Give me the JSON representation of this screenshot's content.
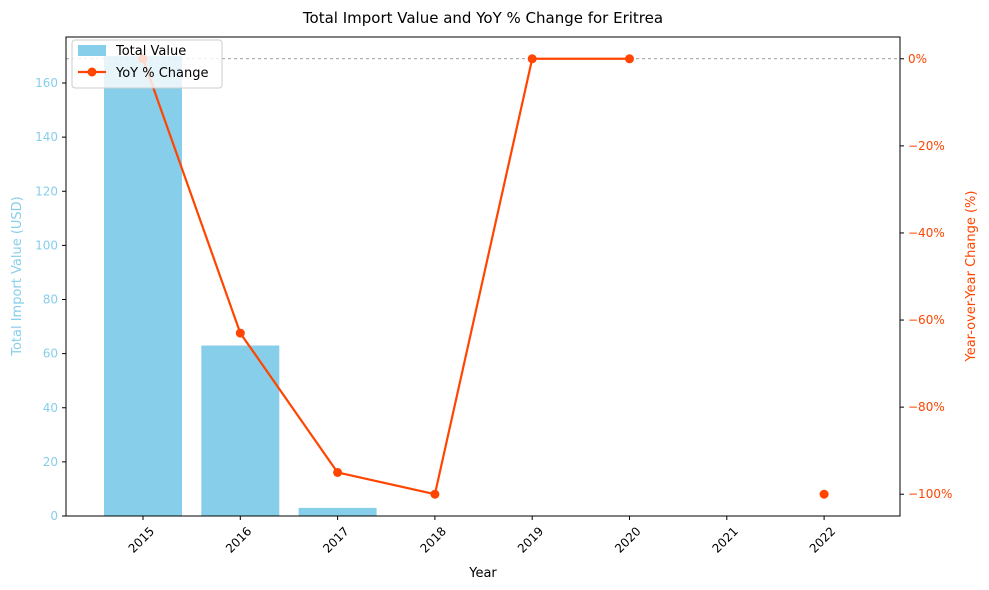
{
  "chart_data": {
    "type": "bar+line",
    "title": "Total Import Value and YoY % Change for Eritrea",
    "xlabel": "Year",
    "ylabel_left": "Total Import Value (USD)",
    "ylabel_right": "Year-over-Year Change (%)",
    "categories": [
      "2015",
      "2016",
      "2017",
      "2018",
      "2019",
      "2020",
      "2021",
      "2022"
    ],
    "series": [
      {
        "name": "Total Value",
        "kind": "bar",
        "axis": "left",
        "color": "#87ceeb",
        "values": [
          170,
          63,
          3,
          0,
          0,
          0,
          0,
          0
        ]
      },
      {
        "name": "YoY % Change",
        "kind": "line",
        "axis": "right",
        "color": "#ff4500",
        "values": [
          0,
          -63,
          -95,
          -100,
          0,
          0,
          null,
          -100
        ]
      }
    ],
    "ylim_left": [
      0,
      177
    ],
    "yticks_left": [
      "0",
      "20",
      "40",
      "60",
      "80",
      "100",
      "120",
      "140",
      "160"
    ],
    "ylim_right": [
      -105,
      5
    ],
    "yticks_right": [
      "0%",
      "−20%",
      "−40%",
      "−60%",
      "−80%",
      "−100%"
    ],
    "reference_line": {
      "axis": "right",
      "value": 0,
      "style": "dashed",
      "color": "#808080"
    },
    "legend_position": "upper-left",
    "grid": false,
    "left_axis_color": "#87ceeb",
    "right_axis_color": "#ff4500"
  }
}
